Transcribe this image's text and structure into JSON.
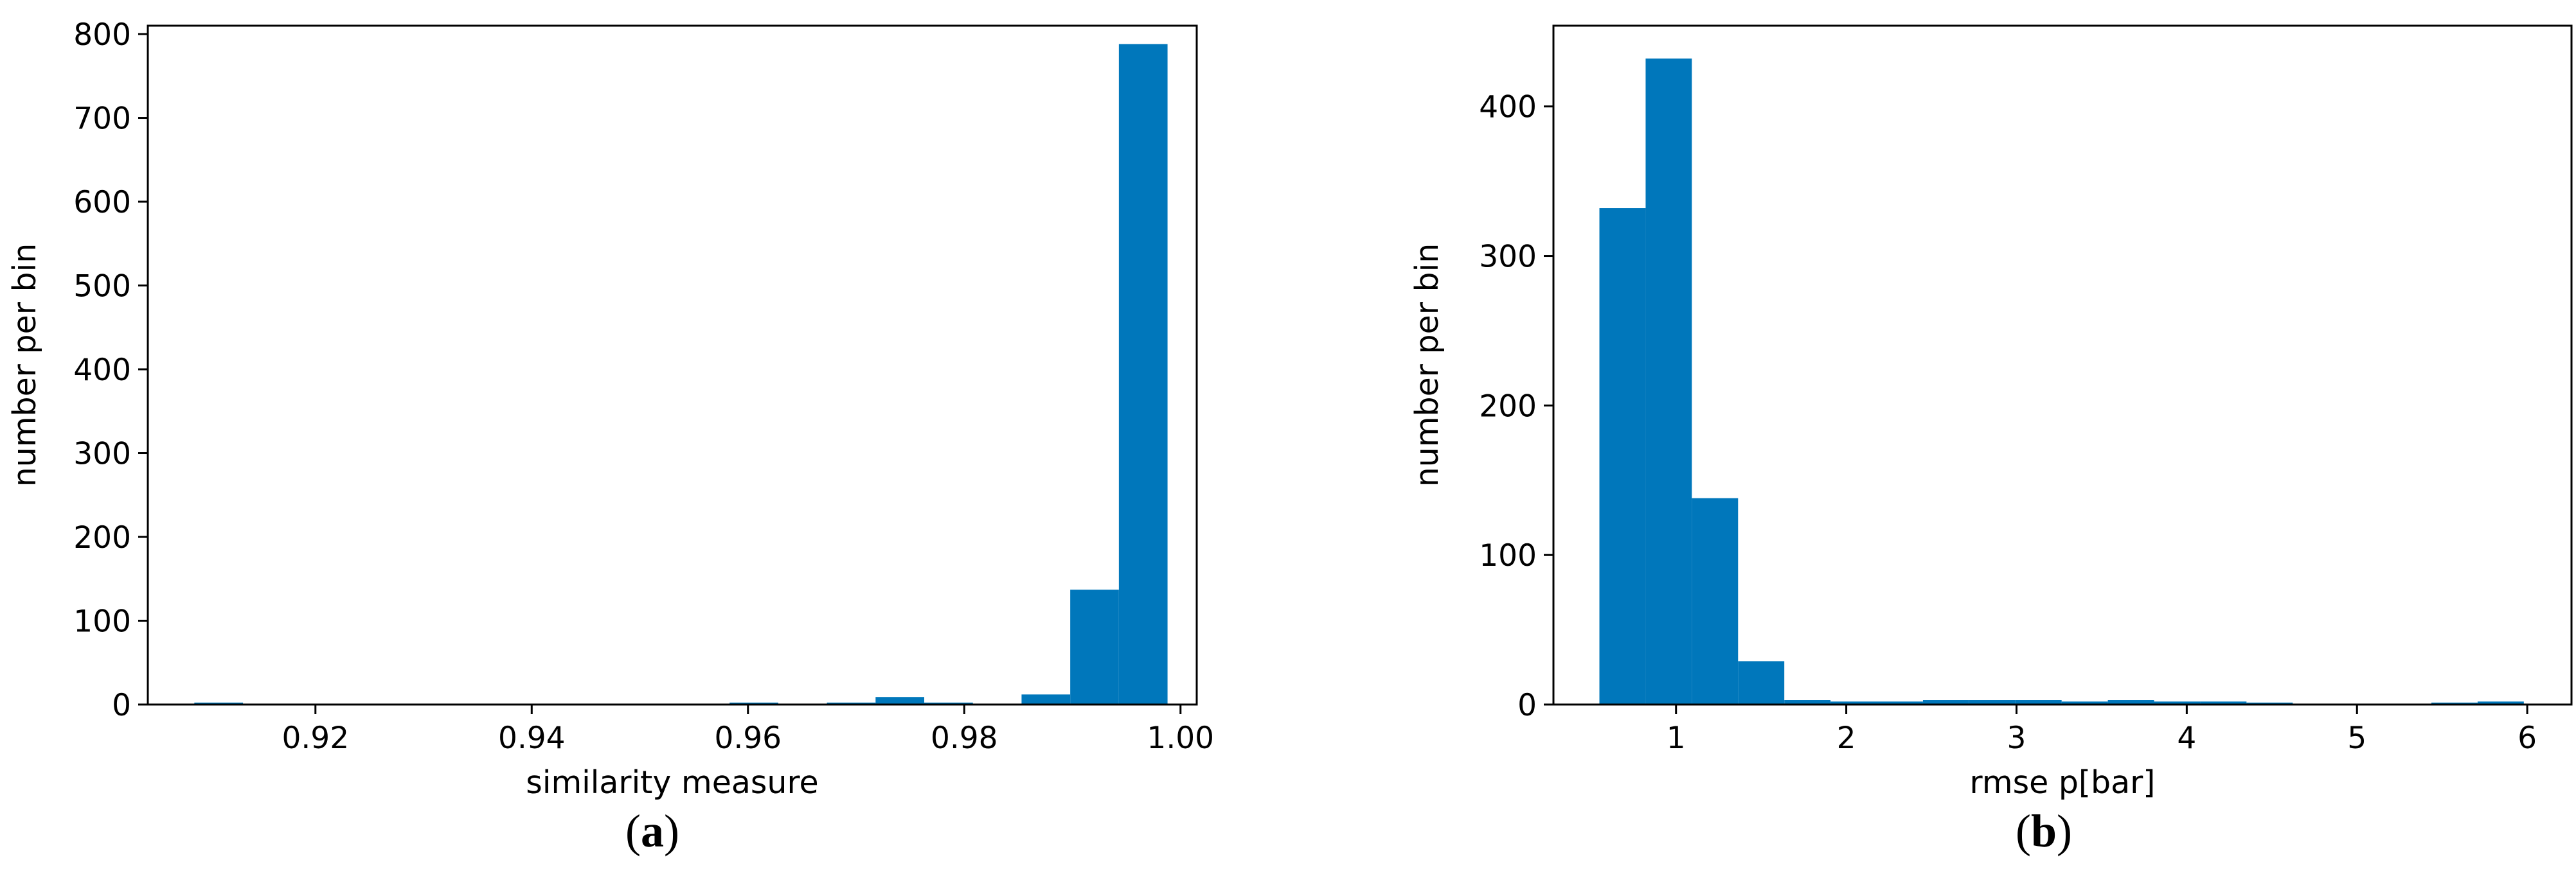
{
  "figure": {
    "panels": [
      {
        "open": "(",
        "letter": "a",
        "close": ")"
      },
      {
        "open": "(",
        "letter": "b",
        "close": ")"
      }
    ]
  },
  "chart_data": [
    {
      "type": "bar",
      "subtype": "histogram",
      "panel": "a",
      "title": "",
      "xlabel": "similarity measure",
      "ylabel": "number per bin",
      "xlim": [
        0.9045,
        1.0015
      ],
      "ylim": [
        0,
        810
      ],
      "xticks": [
        0.92,
        0.94,
        0.96,
        0.98,
        1.0
      ],
      "xtick_labels": [
        "0.92",
        "0.94",
        "0.96",
        "0.98",
        "1.00"
      ],
      "yticks": [
        0,
        100,
        200,
        300,
        400,
        500,
        600,
        700,
        800
      ],
      "ytick_labels": [
        "0",
        "100",
        "200",
        "300",
        "400",
        "500",
        "600",
        "700",
        "800"
      ],
      "bar_color": "#0077bb",
      "bin_edges": [
        0.9088,
        0.9133,
        0.9178,
        0.9223,
        0.9268,
        0.9313,
        0.9358,
        0.9403,
        0.9448,
        0.9493,
        0.9538,
        0.9583,
        0.9628,
        0.9673,
        0.9718,
        0.9763,
        0.9808,
        0.9853,
        0.9898,
        0.9943,
        0.9988
      ],
      "counts": [
        1,
        0,
        0,
        0,
        0,
        0,
        0,
        0,
        0,
        0,
        0,
        1,
        0,
        1,
        9,
        1,
        0,
        12,
        137,
        788
      ],
      "grid": false,
      "legend": "none"
    },
    {
      "type": "bar",
      "subtype": "histogram",
      "panel": "b",
      "title": "",
      "xlabel": "rmse p[bar]",
      "ylabel": "number per bin",
      "xlim": [
        0.28,
        6.26
      ],
      "ylim": [
        0,
        454
      ],
      "xticks": [
        1,
        2,
        3,
        4,
        5,
        6
      ],
      "xtick_labels": [
        "1",
        "2",
        "3",
        "4",
        "5",
        "6"
      ],
      "yticks": [
        0,
        100,
        200,
        300,
        400
      ],
      "ytick_labels": [
        "0",
        "100",
        "200",
        "300",
        "400"
      ],
      "bar_color": "#0077bb",
      "bin_edges": [
        0.55,
        0.8215,
        1.093,
        1.3645,
        1.636,
        1.9075,
        2.179,
        2.4505,
        2.722,
        2.9935,
        3.265,
        3.5365,
        3.808,
        4.0795,
        4.351,
        4.6225,
        4.894,
        5.1655,
        5.437,
        5.7085,
        5.98
      ],
      "counts": [
        332,
        432,
        138,
        29,
        3,
        2,
        2,
        3,
        3,
        3,
        2,
        3,
        2,
        2,
        1,
        0,
        0,
        0,
        1,
        2
      ],
      "grid": false,
      "legend": "none"
    }
  ]
}
